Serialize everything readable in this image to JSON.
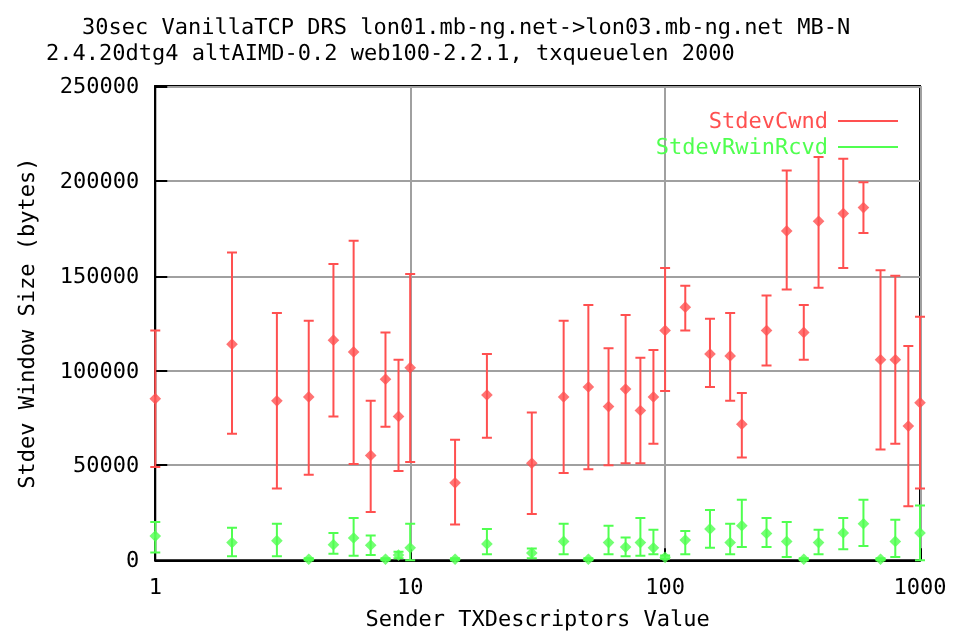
{
  "chart_data": {
    "type": "scatter",
    "title": "30sec VanillaTCP DRS lon01.mb-ng.net->lon03.mb-ng.net MB-N",
    "subtitle": "2.4.20dtg4 altAIMD-0.2 web100-2.2.1, txqueuelen 2000",
    "xlabel": "Sender TXDescriptors Value",
    "ylabel": "Stdev Window Size (bytes)",
    "x": [
      1,
      2,
      3,
      4,
      5,
      6,
      7,
      8,
      9,
      10,
      15,
      20,
      30,
      40,
      50,
      60,
      70,
      80,
      90,
      100,
      120,
      150,
      180,
      200,
      250,
      300,
      350,
      400,
      500,
      600,
      700,
      800,
      900,
      1000
    ],
    "series": [
      {
        "name": "StdevCwnd",
        "color": "#ff5050",
        "values": [
          85100,
          113900,
          84000,
          86100,
          116000,
          109800,
          55200,
          95400,
          75800,
          101500,
          40800,
          87100,
          51100,
          86100,
          91300,
          81000,
          90200,
          78900,
          86100,
          121100,
          133400,
          108700,
          107700,
          71700,
          121100,
          173600,
          120100,
          178700,
          182800,
          185900,
          105700,
          105700,
          70700,
          83000
        ],
        "errors": [
          [
            49100,
            121100
          ],
          [
            66600,
            162200
          ],
          [
            37800,
            130300
          ],
          [
            45000,
            126200
          ],
          [
            75800,
            156100
          ],
          [
            50700,
            168400
          ],
          [
            25400,
            84000
          ],
          [
            70300,
            120100
          ],
          [
            47000,
            105700
          ],
          [
            51800,
            150900
          ],
          [
            18800,
            63500
          ],
          [
            64500,
            108700
          ],
          [
            24400,
            77900
          ],
          [
            46000,
            126200
          ],
          [
            48000,
            134500
          ],
          [
            50100,
            111800
          ],
          [
            51100,
            129300
          ],
          [
            51100,
            106700
          ],
          [
            61400,
            110800
          ],
          [
            89200,
            154000
          ],
          [
            121100,
            144700
          ],
          [
            91300,
            127300
          ],
          [
            84000,
            130300
          ],
          [
            54200,
            88200
          ],
          [
            102600,
            139600
          ],
          [
            142700,
            205400
          ],
          [
            105700,
            134500
          ],
          [
            143700,
            212600
          ],
          [
            154000,
            211600
          ],
          [
            172500,
            199300
          ],
          [
            58300,
            152900
          ],
          [
            61400,
            149900
          ],
          [
            28500,
            112900
          ],
          [
            37800,
            128300
          ]
        ]
      },
      {
        "name": "StdevRwinRcvd",
        "color": "#50ff50",
        "values": [
          12700,
          9300,
          10300,
          500,
          8200,
          11700,
          7900,
          500,
          2700,
          6500,
          500,
          8600,
          3800,
          9900,
          500,
          9300,
          6900,
          9300,
          6500,
          1500,
          10600,
          16500,
          9300,
          18200,
          14100,
          9900,
          500,
          9300,
          14400,
          19200,
          500,
          9900,
          null,
          14400
        ],
        "errors": [
          [
            4100,
            20200
          ],
          [
            2100,
            17100
          ],
          [
            2100,
            19200
          ],
          [
            0,
            1000
          ],
          [
            3400,
            14400
          ],
          [
            2400,
            22300
          ],
          [
            2700,
            13000
          ],
          [
            0,
            1000
          ],
          [
            1000,
            4400
          ],
          [
            0,
            19200
          ],
          [
            0,
            1000
          ],
          [
            3100,
            16500
          ],
          [
            1000,
            6200
          ],
          [
            3100,
            19200
          ],
          [
            0,
            1000
          ],
          [
            3100,
            18200
          ],
          [
            2100,
            12000
          ],
          [
            2400,
            22300
          ],
          [
            3100,
            16100
          ],
          [
            700,
            2500
          ],
          [
            3100,
            15400
          ],
          [
            6500,
            26400
          ],
          [
            3100,
            19200
          ],
          [
            6900,
            31900
          ],
          [
            6900,
            22300
          ],
          [
            1700,
            20200
          ],
          [
            0,
            1000
          ],
          [
            3100,
            16100
          ],
          [
            5800,
            22300
          ],
          [
            7500,
            31900
          ],
          [
            0,
            1000
          ],
          [
            1700,
            21300
          ],
          null,
          [
            0,
            28800
          ]
        ]
      }
    ],
    "xlim": [
      1,
      1000
    ],
    "xticks": [
      1,
      10,
      100,
      1000
    ],
    "log": "x",
    "ylim": [
      0,
      250000
    ],
    "yticks": [
      0,
      50000,
      100000,
      150000,
      200000,
      250000
    ],
    "grid": true,
    "legend": "top right",
    "marker": "diamond"
  }
}
